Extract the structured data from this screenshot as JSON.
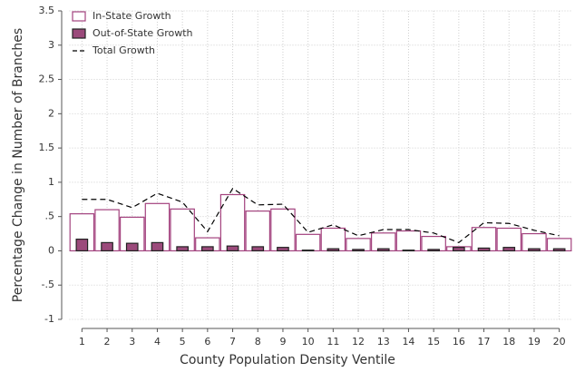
{
  "chart_data": {
    "type": "bar",
    "xlabel": "County Population Density Ventile",
    "ylabel": "Percentage Change in Number of Branches",
    "categories": [
      "1",
      "2",
      "3",
      "4",
      "5",
      "6",
      "7",
      "8",
      "9",
      "10",
      "11",
      "12",
      "13",
      "14",
      "15",
      "16",
      "17",
      "18",
      "19",
      "20"
    ],
    "series": [
      {
        "name": "In-State Growth",
        "color": "#a3427e",
        "values": [
          0.54,
          0.6,
          0.49,
          0.69,
          0.61,
          0.19,
          0.82,
          0.58,
          0.61,
          0.24,
          0.33,
          0.18,
          0.26,
          0.29,
          0.21,
          0.06,
          0.34,
          0.33,
          0.25,
          0.18
        ]
      },
      {
        "name": "Out-of-State Growth",
        "color": "#9b4a7b",
        "values": [
          0.17,
          0.12,
          0.11,
          0.12,
          0.06,
          0.06,
          0.07,
          0.06,
          0.05,
          0.01,
          0.03,
          0.02,
          0.03,
          0.01,
          0.02,
          0.05,
          0.04,
          0.05,
          0.03,
          0.03
        ]
      },
      {
        "name": "Total Growth",
        "type": "line",
        "color": "#000000",
        "values": [
          0.75,
          0.75,
          0.63,
          0.84,
          0.71,
          0.28,
          0.91,
          0.67,
          0.68,
          0.27,
          0.38,
          0.22,
          0.31,
          0.31,
          0.26,
          0.12,
          0.41,
          0.4,
          0.3,
          0.22
        ]
      }
    ],
    "ylim": [
      -1,
      3.5
    ],
    "yticks": [
      {
        "value": -1,
        "label": "-1"
      },
      {
        "value": -0.5,
        "label": "-.5"
      },
      0,
      {
        "value": 0.5,
        "label": ".5"
      },
      1,
      1.5,
      2,
      2.5,
      3,
      3.5
    ],
    "grid": true,
    "legend": "upper-left"
  }
}
